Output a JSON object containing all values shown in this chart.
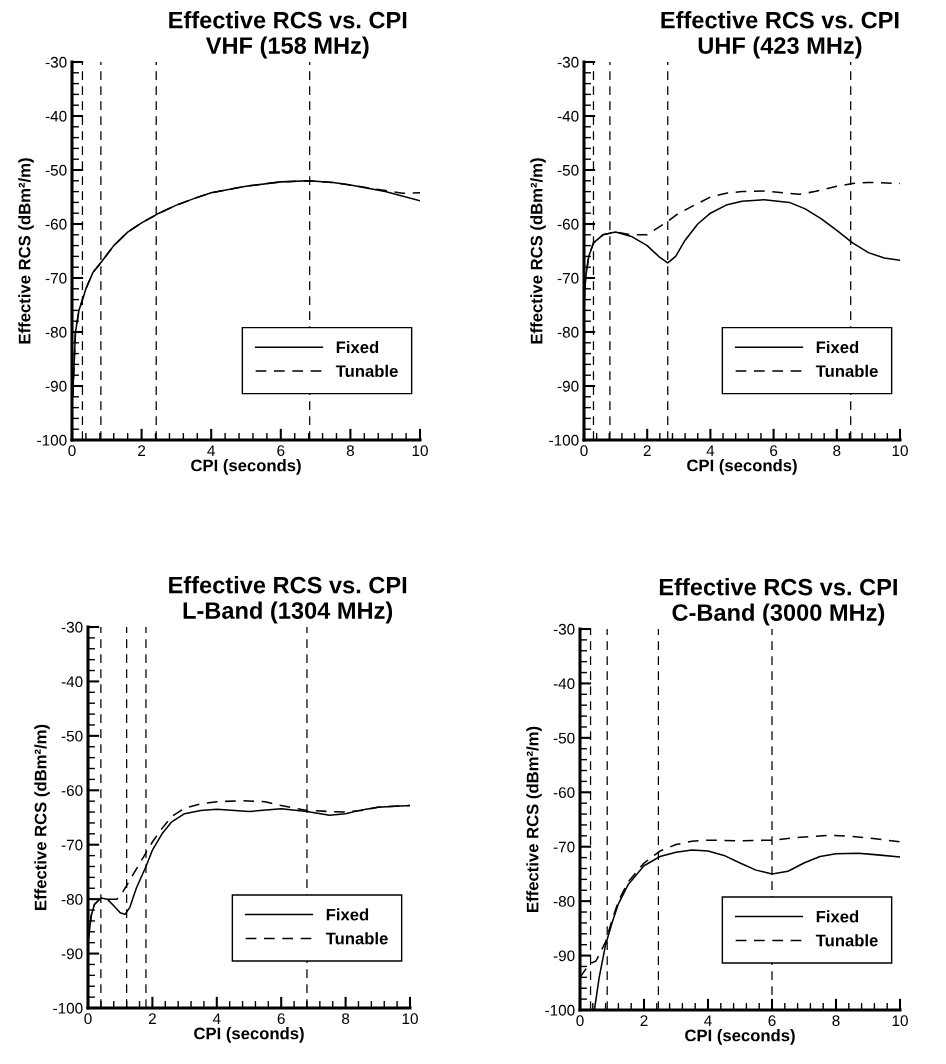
{
  "chart_data": [
    {
      "type": "line",
      "title": "Effective RCS vs. CPI",
      "subtitle": "VHF (158 MHz)",
      "xlabel": "CPI (seconds)",
      "ylabel": "Effective RCS (dBm²/m)",
      "xlim": [
        0,
        10
      ],
      "ylim": [
        -100,
        -30
      ],
      "xticks": [
        0,
        2,
        4,
        6,
        8,
        10
      ],
      "yticks": [
        -100,
        -90,
        -80,
        -70,
        -60,
        -50,
        -40,
        -30
      ],
      "grid": false,
      "legend": "right",
      "marker": "none",
      "series": [
        {
          "name": "Fixed",
          "color": "#000000",
          "line_style": "solid",
          "x": [
            0.02,
            0.1,
            0.2,
            0.4,
            0.6,
            0.85,
            1.2,
            1.6,
            2,
            2.5,
            3,
            3.5,
            4,
            5,
            6,
            6.8,
            7.5,
            8,
            9,
            10
          ],
          "values": [
            -92,
            -80,
            -76,
            -72,
            -69,
            -67,
            -64,
            -61.5,
            -59.8,
            -58,
            -56.5,
            -55.3,
            -54.2,
            -53,
            -52.2,
            -52,
            -52.3,
            -52.8,
            -54,
            -55.7
          ]
        },
        {
          "name": "Tunable",
          "color": "#000000",
          "line_style": "dashed",
          "x": [
            0.02,
            0.1,
            0.2,
            0.4,
            0.6,
            0.85,
            1.2,
            1.6,
            2,
            2.5,
            3,
            3.5,
            4,
            5,
            6,
            6.8,
            7.5,
            8,
            9,
            9.5,
            10
          ],
          "values": [
            -92,
            -80,
            -76,
            -72,
            -69,
            -67,
            -64,
            -61.5,
            -59.8,
            -58,
            -56.5,
            -55.3,
            -54.2,
            -53,
            -52.2,
            -52,
            -52.3,
            -52.8,
            -53.8,
            -54.3,
            -54.2
          ]
        }
      ],
      "ref_lines": [
        {
          "axis": "x",
          "value": 0.3,
          "color": "#000000",
          "line_style": "dashed"
        },
        {
          "axis": "x",
          "value": 0.83,
          "color": "#000000",
          "line_style": "dashed"
        },
        {
          "axis": "x",
          "value": 2.42,
          "color": "#000000",
          "line_style": "dashed"
        },
        {
          "axis": "x",
          "value": 6.83,
          "color": "#000000",
          "line_style": "dashed"
        }
      ]
    },
    {
      "type": "line",
      "title": "Effective RCS vs. CPI",
      "subtitle": "UHF (423 MHz)",
      "xlabel": "CPI (seconds)",
      "ylabel": "Effective RCS (dBm²/m)",
      "xlim": [
        0,
        10
      ],
      "ylim": [
        -100,
        -30
      ],
      "xticks": [
        0,
        2,
        4,
        6,
        8,
        10
      ],
      "yticks": [
        -100,
        -90,
        -80,
        -70,
        -60,
        -50,
        -40,
        -30
      ],
      "grid": false,
      "legend": "right",
      "marker": "none",
      "series": [
        {
          "name": "Fixed",
          "color": "#000000",
          "line_style": "solid",
          "x": [
            0,
            0.05,
            0.15,
            0.3,
            0.6,
            1,
            1.5,
            2,
            2.4,
            2.65,
            2.9,
            3.2,
            3.6,
            4,
            4.5,
            5,
            5.7,
            6.5,
            7,
            7.5,
            8,
            8.5,
            9,
            9.5,
            10
          ],
          "values": [
            -75,
            -70,
            -66,
            -63.5,
            -62,
            -61.5,
            -62.3,
            -64,
            -66.2,
            -67.2,
            -66,
            -63,
            -60,
            -58,
            -56.5,
            -55.8,
            -55.5,
            -56,
            -57.2,
            -59,
            -61.2,
            -63.5,
            -65.3,
            -66.3,
            -66.7
          ]
        },
        {
          "name": "Tunable",
          "color": "#000000",
          "line_style": "dashed",
          "x": [
            0,
            0.05,
            0.15,
            0.3,
            0.6,
            1,
            1.5,
            2,
            2.65,
            3,
            3.5,
            4,
            4.5,
            5,
            5.7,
            6.3,
            6.8,
            7.3,
            8,
            8.5,
            9,
            10
          ],
          "values": [
            -75,
            -70,
            -66,
            -63.5,
            -62,
            -61.5,
            -62,
            -62,
            -59.5,
            -58,
            -56.5,
            -55,
            -54.3,
            -54,
            -53.9,
            -54.2,
            -54.5,
            -54,
            -53,
            -52.5,
            -52.3,
            -52.5
          ]
        }
      ],
      "ref_lines": [
        {
          "axis": "x",
          "value": 0.3,
          "color": "#000000",
          "line_style": "dashed"
        },
        {
          "axis": "x",
          "value": 0.82,
          "color": "#000000",
          "line_style": "dashed"
        },
        {
          "axis": "x",
          "value": 2.65,
          "color": "#000000",
          "line_style": "dashed"
        },
        {
          "axis": "x",
          "value": 8.44,
          "color": "#000000",
          "line_style": "dashed"
        }
      ]
    },
    {
      "type": "line",
      "title": "Effective RCS vs. CPI",
      "subtitle": "L-Band (1304 MHz)",
      "xlabel": "CPI (seconds)",
      "ylabel": "Effective RCS (dBm²/m)",
      "xlim": [
        0,
        10
      ],
      "ylim": [
        -100,
        -30
      ],
      "xticks": [
        0,
        2,
        4,
        6,
        8,
        10
      ],
      "yticks": [
        -100,
        -90,
        -80,
        -70,
        -60,
        -50,
        -40,
        -30
      ],
      "grid": false,
      "legend": "right",
      "marker": "none",
      "series": [
        {
          "name": "Fixed",
          "color": "#000000",
          "line_style": "solid",
          "x": [
            0,
            0.1,
            0.2,
            0.4,
            0.6,
            0.8,
            1,
            1.15,
            1.3,
            1.5,
            1.8,
            2,
            2.3,
            2.6,
            3,
            3.5,
            4,
            5,
            6,
            6.8,
            7.5,
            8,
            8.5,
            9,
            10
          ],
          "values": [
            -88,
            -83,
            -81,
            -79.8,
            -80,
            -81.2,
            -82.5,
            -82.8,
            -81.5,
            -78,
            -74,
            -71,
            -68,
            -65.8,
            -64.3,
            -63.7,
            -63.5,
            -63.9,
            -63.4,
            -63.9,
            -64.6,
            -64.3,
            -63.6,
            -63.1,
            -62.8
          ]
        },
        {
          "name": "Tunable",
          "color": "#000000",
          "line_style": "dashed",
          "x": [
            0,
            0.1,
            0.2,
            0.4,
            0.6,
            0.9,
            1.1,
            1.2,
            1.5,
            1.8,
            2,
            2.3,
            2.6,
            3,
            3.5,
            4,
            4.8,
            5.5,
            6,
            6.8,
            7.5,
            8,
            8.5,
            9,
            10
          ],
          "values": [
            -88,
            -83,
            -81,
            -79.8,
            -80,
            -80,
            -78.5,
            -77.5,
            -74.5,
            -71.5,
            -69.5,
            -67,
            -64.8,
            -63.3,
            -62.5,
            -62.1,
            -61.9,
            -62.1,
            -62.8,
            -63.7,
            -63.9,
            -64,
            -63.7,
            -63.1,
            -62.8
          ]
        }
      ],
      "ref_lines": [
        {
          "axis": "x",
          "value": 0.4,
          "color": "#000000",
          "line_style": "dashed"
        },
        {
          "axis": "x",
          "value": 1.2,
          "color": "#000000",
          "line_style": "dashed"
        },
        {
          "axis": "x",
          "value": 1.8,
          "color": "#000000",
          "line_style": "dashed"
        },
        {
          "axis": "x",
          "value": 6.8,
          "color": "#000000",
          "line_style": "dashed"
        }
      ]
    },
    {
      "type": "line",
      "title": "Effective RCS vs. CPI",
      "subtitle": "C-Band (3000 MHz)",
      "xlabel": "CPI (seconds)",
      "ylabel": "Effective RCS (dBm²/m)",
      "xlim": [
        0,
        10
      ],
      "ylim": [
        -100,
        -30
      ],
      "xticks": [
        0,
        2,
        4,
        6,
        8,
        10
      ],
      "yticks": [
        -100,
        -90,
        -80,
        -70,
        -60,
        -50,
        -40,
        -30
      ],
      "grid": false,
      "legend": "right",
      "marker": "none",
      "series": [
        {
          "name": "Fixed",
          "color": "#000000",
          "line_style": "solid",
          "x": [
            0.45,
            0.6,
            0.8,
            1,
            1.2,
            1.5,
            2,
            2.5,
            3,
            3.5,
            4,
            4.5,
            5,
            5.5,
            6,
            6.5,
            7,
            7.5,
            8,
            8.7,
            9.3,
            10
          ],
          "values": [
            -100,
            -94,
            -88,
            -84,
            -80.5,
            -77,
            -73.5,
            -71.8,
            -71,
            -70.6,
            -70.8,
            -71.6,
            -73,
            -74.3,
            -75,
            -74.5,
            -73,
            -71.8,
            -71.3,
            -71.2,
            -71.5,
            -71.9
          ]
        },
        {
          "name": "Tunable",
          "color": "#000000",
          "line_style": "dashed",
          "x": [
            0,
            0.3,
            0.5,
            0.8,
            1,
            1.2,
            1.5,
            2,
            2.5,
            3,
            3.5,
            4,
            5,
            6,
            7,
            7.8,
            8.5,
            9.3,
            10
          ],
          "values": [
            -94,
            -91.5,
            -91,
            -87.5,
            -83.5,
            -80,
            -76.5,
            -73,
            -70.8,
            -69.6,
            -69,
            -68.8,
            -68.9,
            -68.8,
            -68.2,
            -67.9,
            -68.1,
            -68.6,
            -69.1
          ]
        }
      ],
      "ref_lines": [
        {
          "axis": "x",
          "value": 0.33,
          "color": "#000000",
          "line_style": "dashed"
        },
        {
          "axis": "x",
          "value": 0.85,
          "color": "#000000",
          "line_style": "dashed"
        },
        {
          "axis": "x",
          "value": 2.45,
          "color": "#000000",
          "line_style": "dashed"
        },
        {
          "axis": "x",
          "value": 6.0,
          "color": "#000000",
          "line_style": "dashed"
        }
      ]
    }
  ]
}
